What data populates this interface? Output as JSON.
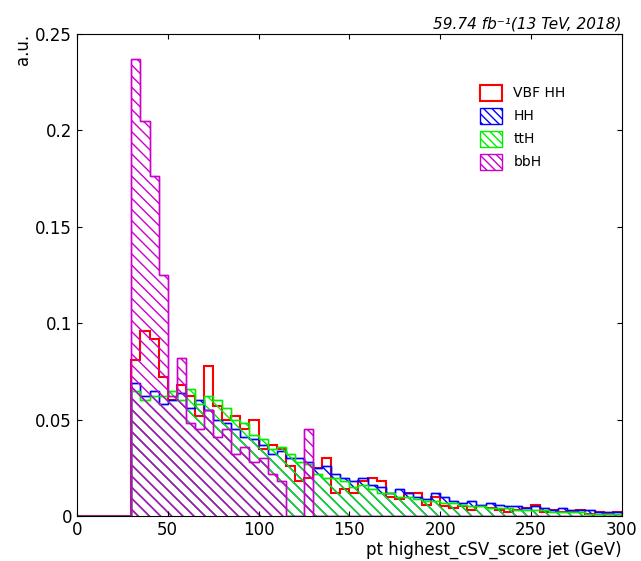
{
  "chart_data": {
    "type": "histogram",
    "title": "59.74 fb⁻¹(13 TeV, 2018)",
    "x_label": "pt highest_cSV_score jet (GeV)",
    "y_label": "a.u.",
    "bins": [
      0,
      5,
      10,
      15,
      20,
      25,
      30,
      35,
      40,
      45,
      50,
      55,
      60,
      65,
      70,
      75,
      80,
      85,
      90,
      95,
      100,
      105,
      110,
      115,
      120,
      125,
      130,
      135,
      140,
      145,
      150,
      155,
      160,
      165,
      170,
      175,
      180,
      185,
      190,
      195,
      200,
      205,
      210,
      215,
      220,
      225,
      230,
      235,
      240,
      245,
      250,
      255,
      260,
      265,
      270,
      275,
      280,
      285,
      290,
      295,
      300
    ],
    "series": [
      {
        "name": "VBF HH",
        "color": "#ff0000",
        "type": "step",
        "values": [
          0,
          0,
          0,
          0,
          0,
          0,
          0.081,
          0.096,
          0.092,
          0.072,
          0.06,
          0.068,
          0.062,
          0.052,
          0.078,
          0.057,
          0.05,
          0.052,
          0.045,
          0.05,
          0.035,
          0.037,
          0.035,
          0.026,
          0.018,
          0.02,
          0.025,
          0.03,
          0.012,
          0.014,
          0.012,
          0.018,
          0.02,
          0.018,
          0.01,
          0.009,
          0.012,
          0.012,
          0.006,
          0.01,
          0.005,
          0.004,
          0.005,
          0.003,
          0.005,
          0.004,
          0.003,
          0.002,
          0.003,
          0.004,
          0.006,
          0.002,
          0.003,
          0.002,
          0.002,
          0.003,
          0.001,
          0.002,
          0.001,
          0.002
        ]
      },
      {
        "name": "HH",
        "color": "#0000ff",
        "type": "hatched_step",
        "values": [
          0,
          0,
          0,
          0,
          0,
          0,
          0.069,
          0.062,
          0.065,
          0.058,
          0.06,
          0.064,
          0.056,
          0.06,
          0.055,
          0.05,
          0.048,
          0.045,
          0.041,
          0.04,
          0.037,
          0.032,
          0.034,
          0.03,
          0.03,
          0.028,
          0.025,
          0.026,
          0.022,
          0.02,
          0.018,
          0.02,
          0.016,
          0.015,
          0.012,
          0.014,
          0.012,
          0.01,
          0.009,
          0.012,
          0.01,
          0.008,
          0.007,
          0.008,
          0.006,
          0.007,
          0.006,
          0.005,
          0.005,
          0.004,
          0.005,
          0.004,
          0.003,
          0.004,
          0.003,
          0.003,
          0.003,
          0.002,
          0.002,
          0.002
        ]
      },
      {
        "name": "ttH",
        "color": "#00ee00",
        "type": "hatched_step",
        "values": [
          0,
          0,
          0,
          0,
          0,
          0,
          0.065,
          0.06,
          0.062,
          0.062,
          0.065,
          0.06,
          0.066,
          0.058,
          0.062,
          0.06,
          0.056,
          0.05,
          0.048,
          0.042,
          0.04,
          0.035,
          0.036,
          0.032,
          0.028,
          0.027,
          0.022,
          0.02,
          0.02,
          0.018,
          0.015,
          0.016,
          0.014,
          0.012,
          0.012,
          0.01,
          0.01,
          0.009,
          0.008,
          0.008,
          0.007,
          0.007,
          0.006,
          0.005,
          0.005,
          0.004,
          0.004,
          0.004,
          0.003,
          0.003,
          0.003,
          0.003,
          0.002,
          0.002,
          0.002,
          0.002,
          0.001,
          0.001,
          0.001,
          0.001
        ]
      },
      {
        "name": "bbH",
        "color": "#cc00cc",
        "type": "hatched_step",
        "values": [
          0,
          0,
          0,
          0,
          0,
          0,
          0.237,
          0.205,
          0.176,
          0.125,
          0.062,
          0.082,
          0.048,
          0.045,
          0.055,
          0.041,
          0.045,
          0.032,
          0.036,
          0.028,
          0.03,
          0.022,
          0.018,
          0,
          0,
          0.045,
          0,
          0,
          0,
          0,
          0,
          0,
          0,
          0,
          0,
          0,
          0,
          0,
          0,
          0,
          0,
          0,
          0,
          0,
          0,
          0,
          0,
          0,
          0,
          0,
          0,
          0,
          0,
          0,
          0,
          0,
          0,
          0,
          0,
          0
        ]
      }
    ],
    "xlim": [
      0,
      300
    ],
    "ylim": [
      0,
      0.25
    ],
    "xticks": [
      0,
      50,
      100,
      150,
      200,
      250,
      300
    ],
    "yticks": [
      0,
      0.05,
      0.1,
      0.15,
      0.2,
      0.25
    ],
    "legend": "upper right"
  }
}
